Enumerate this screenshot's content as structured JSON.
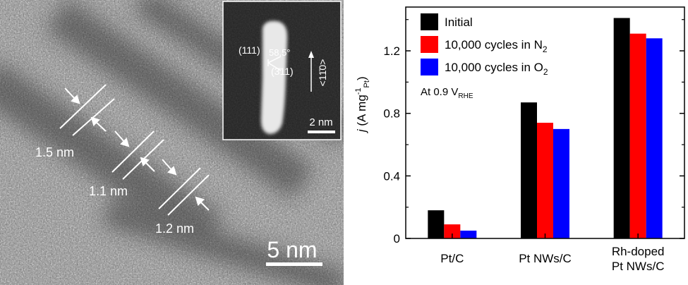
{
  "tem": {
    "measurements": [
      {
        "label": "1.5 nm"
      },
      {
        "label": "1.1 nm"
      },
      {
        "label": "1.2 nm"
      }
    ],
    "scale_bar_label": "5 nm",
    "inset": {
      "plane_a": "(111)",
      "angle": "58.5°",
      "plane_b": "(3̄11)",
      "direction": "<11̄0>",
      "scale_bar_label": "2 nm"
    }
  },
  "chart_data": {
    "type": "bar",
    "categories": [
      "Pt/C",
      "Pt NWs/C",
      "Rh-doped Pt NWs/C"
    ],
    "category_lines": [
      [
        "Pt/C"
      ],
      [
        "Pt NWs/C"
      ],
      [
        "Rh-doped",
        "Pt NWs/C"
      ]
    ],
    "series": [
      {
        "name": "Initial",
        "color": "#000000",
        "values": [
          0.18,
          0.87,
          1.41
        ]
      },
      {
        "name": "10,000 cycles in N2",
        "color": "#ff0000",
        "values": [
          0.09,
          0.74,
          1.31
        ]
      },
      {
        "name": "10,000 cycles in O2",
        "color": "#0000ff",
        "values": [
          0.05,
          0.7,
          1.28
        ]
      }
    ],
    "legend_parts": [
      {
        "text": "Initial",
        "sub": ""
      },
      {
        "text": "10,000 cycles in N",
        "sub": "2"
      },
      {
        "text": "10,000 cycles in O",
        "sub": "2"
      }
    ],
    "ylabel": {
      "italic": "j",
      "open": " (A mg",
      "sup": "-1",
      "sub": "Pt",
      "close": ")"
    },
    "yticks": [
      0,
      0.4,
      0.8,
      1.2
    ],
    "ytick_labels": [
      "0",
      "0.4",
      "0.8",
      "1.2"
    ],
    "ylim": [
      0,
      1.48
    ],
    "annotation": {
      "text": "At 0.9 V",
      "sub": "RHE"
    },
    "legend_position": "top-left"
  }
}
